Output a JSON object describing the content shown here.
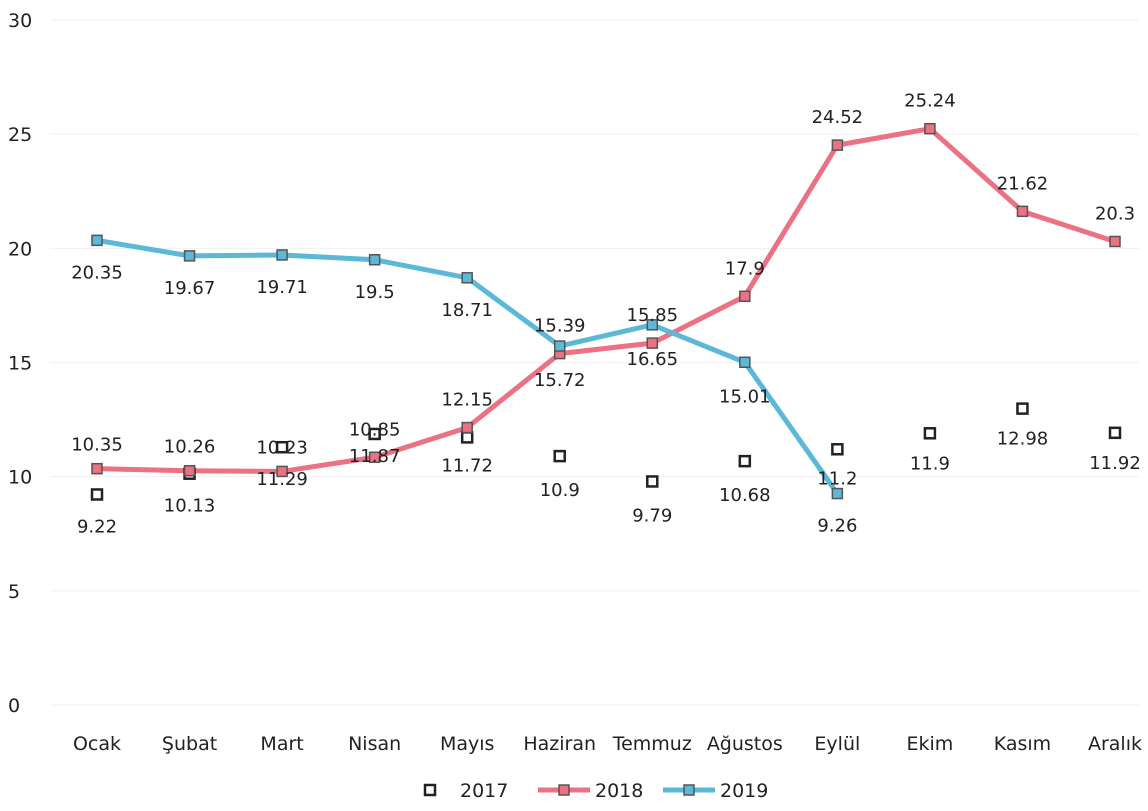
{
  "chart_data": {
    "type": "line",
    "title": "",
    "xlabel": "",
    "ylabel": "",
    "categories": [
      "Ocak",
      "Şubat",
      "Mart",
      "Nisan",
      "Mayıs",
      "Haziran",
      "Temmuz",
      "Ağustos",
      "Eylül",
      "Ekim",
      "Kasım",
      "Aralık"
    ],
    "ylim": [
      0,
      30
    ],
    "yticks": [
      "0",
      "5",
      "10",
      "15",
      "20",
      "25",
      "30"
    ],
    "grid": true,
    "legend": "bottom",
    "series": [
      {
        "name": "2017",
        "style": "markers-only",
        "color": "#222222",
        "values": [
          9.22,
          10.13,
          11.29,
          11.87,
          11.72,
          10.9,
          9.79,
          10.68,
          11.2,
          11.9,
          12.98,
          11.92
        ],
        "labels": [
          "9.22",
          "10.13",
          "11.29",
          "11.87",
          "11.72",
          "10.9",
          "9.79",
          "10.68",
          "11.2",
          "11.9",
          "12.98",
          "11.92"
        ]
      },
      {
        "name": "2018",
        "style": "line-markers",
        "color": "#ec7183",
        "values": [
          10.35,
          10.26,
          10.23,
          10.85,
          12.15,
          15.39,
          15.85,
          17.9,
          24.52,
          25.24,
          21.62,
          20.3
        ],
        "labels": [
          "10.35",
          "10.26",
          "10.23",
          "10.85",
          "12.15",
          "15.39",
          "15.85",
          "17.9",
          "24.52",
          "25.24",
          "21.62",
          "20.3"
        ]
      },
      {
        "name": "2019",
        "style": "line-markers",
        "color": "#5bb8d6",
        "values": [
          20.35,
          19.67,
          19.71,
          19.5,
          18.71,
          15.72,
          16.65,
          15.01,
          9.26,
          null,
          null,
          null
        ],
        "labels": [
          "20.35",
          "19.67",
          "19.71",
          "19.5",
          "18.71",
          "15.72",
          "16.65",
          "15.01",
          "9.26",
          null,
          null,
          null
        ]
      }
    ]
  }
}
